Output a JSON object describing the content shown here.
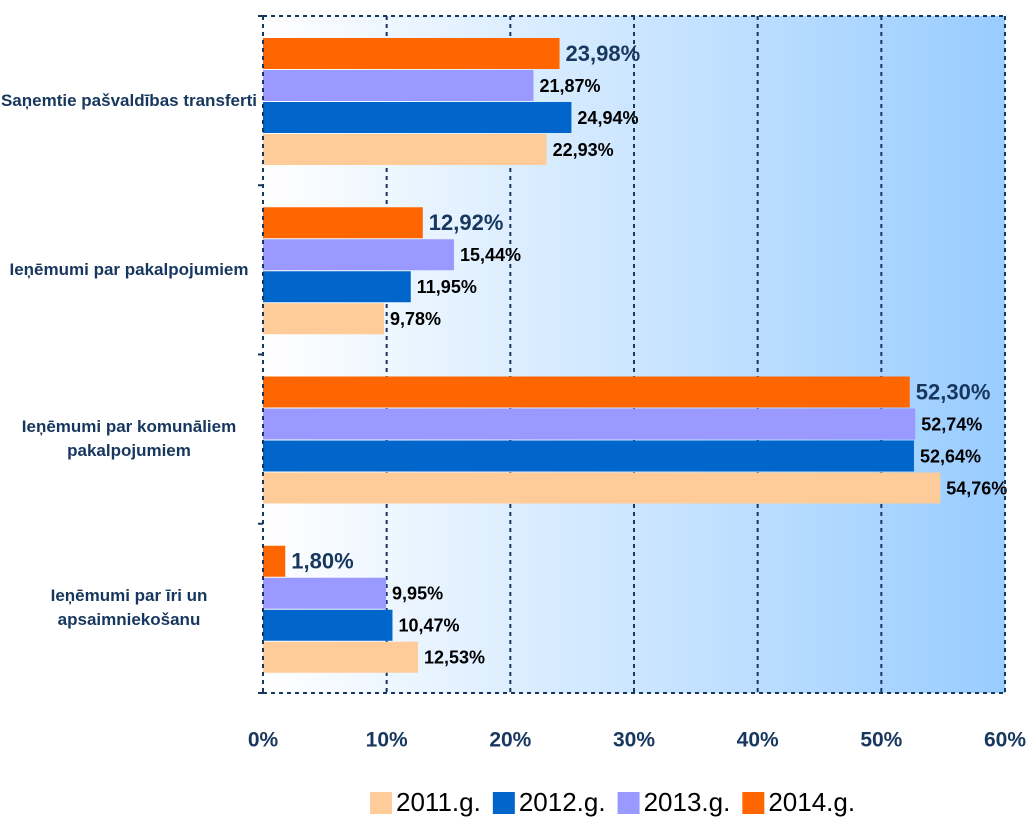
{
  "chart_data": {
    "type": "barh",
    "categories": [
      "Saņemtie pašvaldības transferti",
      "Ieņēmumi par pakalpojumiem",
      "Ieņēmumi par komunāliem pakalpojumiem",
      "Ieņēmumi par īri un apsaimniekošanu"
    ],
    "series": [
      {
        "name": "2011.g.",
        "color": "#ffcc99",
        "values": [
          22.93,
          9.78,
          54.76,
          12.53
        ],
        "value_labels": [
          "22,93%",
          "9,78%",
          "54,76%",
          "12,53%"
        ]
      },
      {
        "name": "2012.g.",
        "color": "#0066cc",
        "values": [
          24.94,
          11.95,
          52.64,
          10.47
        ],
        "value_labels": [
          "24,94%",
          "11,95%",
          "52,64%",
          "10,47%"
        ]
      },
      {
        "name": "2013.g.",
        "color": "#9999ff",
        "values": [
          21.87,
          15.44,
          52.74,
          9.95
        ],
        "value_labels": [
          "21,87%",
          "15,44%",
          "52,74%",
          "9,95%"
        ]
      },
      {
        "name": "2014.g.",
        "color": "#ff6600",
        "values": [
          23.98,
          12.92,
          52.3,
          1.8
        ],
        "value_labels": [
          "23,98%",
          "12,92%",
          "52,30%",
          "1,80%"
        ]
      }
    ],
    "xlim": [
      0,
      60
    ],
    "xticks": [
      {
        "value": 0,
        "label": "0%"
      },
      {
        "value": 10,
        "label": "10%"
      },
      {
        "value": 20,
        "label": "20%"
      },
      {
        "value": 30,
        "label": "30%"
      },
      {
        "value": 40,
        "label": "40%"
      },
      {
        "value": 50,
        "label": "50%"
      },
      {
        "value": 60,
        "label": "60%"
      }
    ],
    "grid": true,
    "legend": "bottom"
  }
}
